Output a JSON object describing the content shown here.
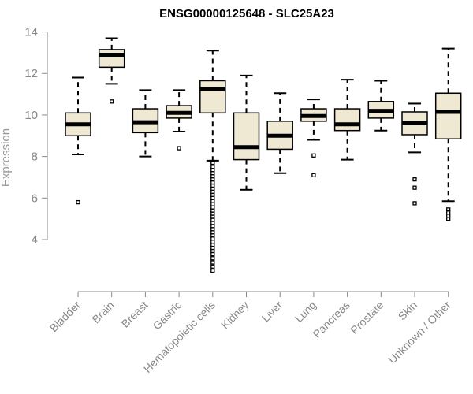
{
  "chart_data": {
    "type": "boxplot",
    "title": "ENSG00000125648 - SLC25A23",
    "xlabel": "",
    "ylabel": "Expression",
    "ylim": [
      1.8,
      14.4
    ],
    "yticks": [
      4,
      6,
      8,
      10,
      12,
      14
    ],
    "grid": false,
    "colors": {
      "box_fill": "#efe8d2",
      "stroke": "#000000",
      "axis": "#888888"
    },
    "categories": [
      "Bladder",
      "Brain",
      "Breast",
      "Gastric",
      "Hematopoietic cells",
      "Kidney",
      "Liver",
      "Lung",
      "Pancreas",
      "Prostate",
      "Skin",
      "Unknown / Other"
    ],
    "boxes": [
      {
        "category": "Bladder",
        "whisker_low": 8.1,
        "q1": 9.0,
        "median": 9.55,
        "q3": 10.1,
        "whisker_high": 11.8,
        "outliers": [
          5.8
        ]
      },
      {
        "category": "Brain",
        "whisker_low": 11.5,
        "q1": 12.3,
        "median": 12.9,
        "q3": 13.15,
        "whisker_high": 13.7,
        "outliers": [
          10.65
        ]
      },
      {
        "category": "Breast",
        "whisker_low": 8.0,
        "q1": 9.15,
        "median": 9.65,
        "q3": 10.3,
        "whisker_high": 11.2,
        "outliers": []
      },
      {
        "category": "Gastric",
        "whisker_low": 9.2,
        "q1": 9.85,
        "median": 10.1,
        "q3": 10.45,
        "whisker_high": 11.2,
        "outliers": [
          8.4
        ]
      },
      {
        "category": "Hematopoietic cells",
        "whisker_low": 7.8,
        "q1": 10.1,
        "median": 11.25,
        "q3": 11.65,
        "whisker_high": 13.1,
        "outliers": [
          7.7,
          7.5,
          7.35,
          7.2,
          7.05,
          6.9,
          6.75,
          6.6,
          6.45,
          6.3,
          6.15,
          6.0,
          5.85,
          5.7,
          5.55,
          5.4,
          5.25,
          5.1,
          4.95,
          4.8,
          4.65,
          4.5,
          4.35,
          4.2,
          4.05,
          3.9,
          3.75,
          3.6,
          3.45,
          3.3,
          3.1,
          2.9,
          2.7,
          2.5
        ]
      },
      {
        "category": "Kidney",
        "whisker_low": 6.4,
        "q1": 7.85,
        "median": 8.45,
        "q3": 10.1,
        "whisker_high": 11.9,
        "outliers": []
      },
      {
        "category": "Liver",
        "whisker_low": 7.2,
        "q1": 8.35,
        "median": 9.0,
        "q3": 9.7,
        "whisker_high": 11.05,
        "outliers": []
      },
      {
        "category": "Lung",
        "whisker_low": 8.8,
        "q1": 9.7,
        "median": 9.95,
        "q3": 10.3,
        "whisker_high": 10.75,
        "outliers": [
          8.05,
          7.1
        ]
      },
      {
        "category": "Pancreas",
        "whisker_low": 7.85,
        "q1": 9.25,
        "median": 9.55,
        "q3": 10.3,
        "whisker_high": 11.7,
        "outliers": []
      },
      {
        "category": "Prostate",
        "whisker_low": 9.25,
        "q1": 9.85,
        "median": 10.2,
        "q3": 10.65,
        "whisker_high": 11.65,
        "outliers": []
      },
      {
        "category": "Skin",
        "whisker_low": 8.2,
        "q1": 9.05,
        "median": 9.6,
        "q3": 10.15,
        "whisker_high": 10.55,
        "outliers": [
          6.9,
          6.5,
          5.75
        ]
      },
      {
        "category": "Unknown / Other",
        "whisker_low": 5.85,
        "q1": 8.85,
        "median": 10.15,
        "q3": 11.05,
        "whisker_high": 13.2,
        "outliers": [
          5.45,
          5.3,
          5.15,
          5.0
        ]
      }
    ]
  }
}
